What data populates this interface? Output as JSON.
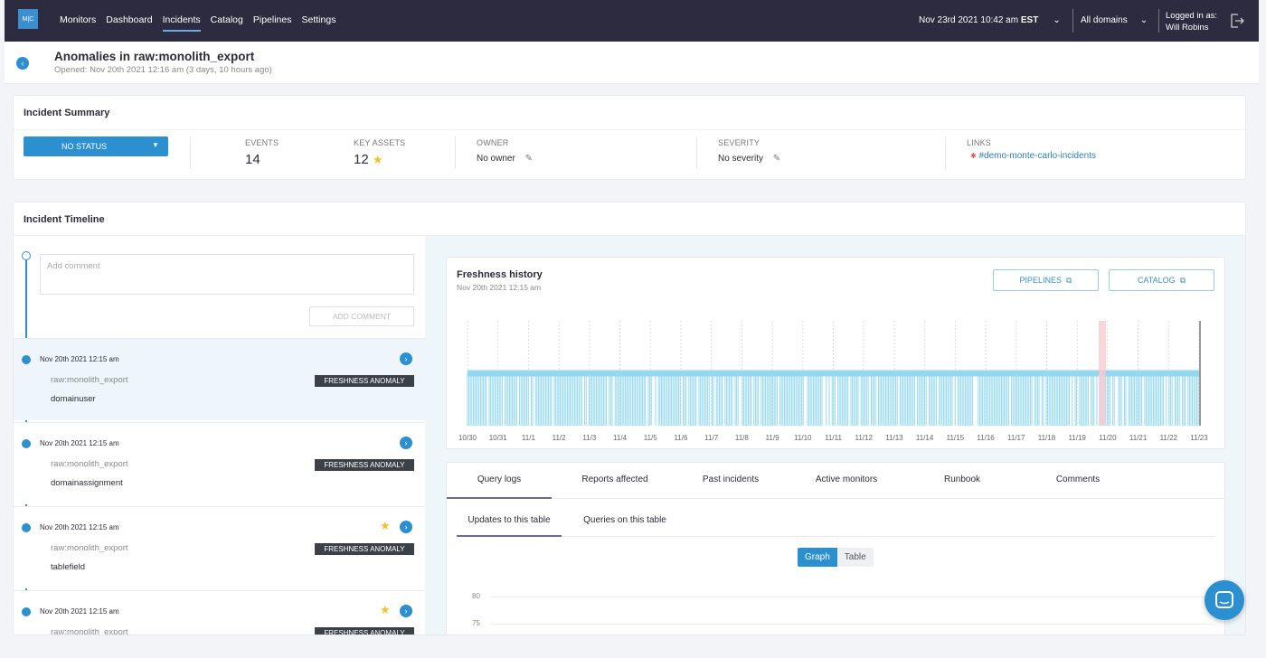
{
  "nav": {
    "logo": "M|C",
    "items": [
      "Monitors",
      "Dashboard",
      "Incidents",
      "Catalog",
      "Pipelines",
      "Settings"
    ],
    "datetime": "Nov 23rd 2021 10:42 am",
    "timezone": "EST",
    "domains": "All domains",
    "logged_in_label": "Logged in as:",
    "user": "Will Robins"
  },
  "header": {
    "title": "Anomalies in raw:monolith_export",
    "subtitle": "Opened: Nov 20th 2021 12:16 am (3 days, 10 hours ago)"
  },
  "summary": {
    "title": "Incident Summary",
    "status": "NO STATUS",
    "events_label": "EVENTS",
    "events": 14,
    "key_assets_label": "KEY ASSETS",
    "key_assets": 12,
    "owner_label": "OWNER",
    "owner": "No owner",
    "severity_label": "SEVERITY",
    "severity": "No severity",
    "links_label": "LINKS",
    "link": "#demo-monte-carlo-incidents"
  },
  "timeline": {
    "title": "Incident Timeline",
    "comment_placeholder": "Add comment",
    "comment_button": "ADD COMMENT",
    "events": [
      {
        "time": "Nov 20th 2021 12:15 am",
        "table": "raw:monolith_export",
        "tag": "FRESHNESS ANOMALY",
        "field": "domainuser",
        "starred": false
      },
      {
        "time": "Nov 20th 2021 12:15 am",
        "table": "raw:monolith_export",
        "tag": "FRESHNESS ANOMALY",
        "field": "domainassignment",
        "starred": false
      },
      {
        "time": "Nov 20th 2021 12:15 am",
        "table": "raw:monolith_export",
        "tag": "FRESHNESS ANOMALY",
        "field": "tablefield",
        "starred": true
      },
      {
        "time": "Nov 20th 2021 12:15 am",
        "table": "raw:monolith_export",
        "tag": "FRESHNESS ANOMALY",
        "starred": true
      }
    ]
  },
  "freshness": {
    "title": "Freshness history",
    "subtitle": "Nov 20th 2021 12:15 am",
    "buttons": [
      "PIPELINES",
      "CATALOG"
    ],
    "dates": [
      "10/30",
      "10/31",
      "11/1",
      "11/2",
      "11/3",
      "11/4",
      "11/5",
      "11/6",
      "11/7",
      "11/8",
      "11/9",
      "11/10",
      "11/11",
      "11/12",
      "11/13",
      "11/14",
      "11/15",
      "11/16",
      "11/17",
      "11/18",
      "11/19",
      "11/20",
      "11/21",
      "11/22",
      "11/23"
    ]
  },
  "details": {
    "tabs": [
      "Query logs",
      "Reports affected",
      "Past incidents",
      "Active monitors",
      "Runbook",
      "Comments"
    ],
    "subtabs": [
      "Updates to this table",
      "Queries on this table"
    ],
    "toggle": [
      "Graph",
      "Table"
    ],
    "yticks": [
      80,
      75
    ]
  }
}
